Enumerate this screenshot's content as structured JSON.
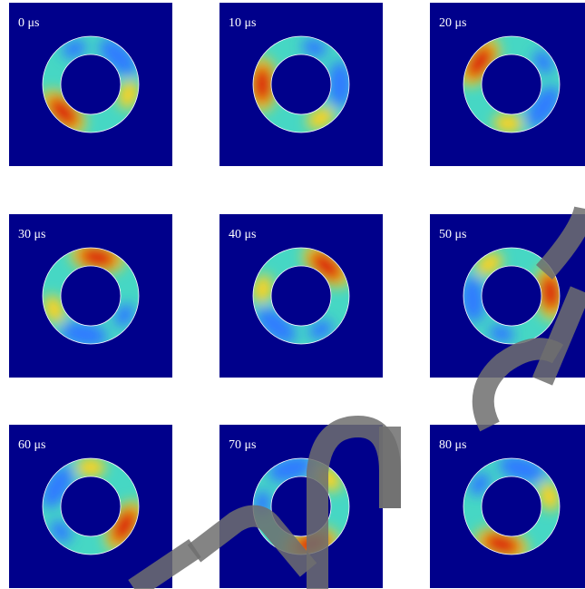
{
  "panels": [
    {
      "label": "0 μs",
      "hot_angle_deg": 135,
      "warm_angle_deg": 15
    },
    {
      "label": "10 μs",
      "hot_angle_deg": 180,
      "warm_angle_deg": 60
    },
    {
      "label": "20 μs",
      "hot_angle_deg": 215,
      "warm_angle_deg": 95
    },
    {
      "label": "30 μs",
      "hot_angle_deg": 280,
      "warm_angle_deg": 160
    },
    {
      "label": "40 μs",
      "hot_angle_deg": 310,
      "warm_angle_deg": 190
    },
    {
      "label": "50 μs",
      "hot_angle_deg": 355,
      "warm_angle_deg": 235
    },
    {
      "label": "60 μs",
      "hot_angle_deg": 30,
      "warm_angle_deg": 270
    },
    {
      "label": "70 μs",
      "hot_angle_deg": 75,
      "warm_angle_deg": 315
    },
    {
      "label": "80 μs",
      "hot_angle_deg": 105,
      "warm_angle_deg": 345
    }
  ],
  "colors": {
    "background": "#00008b",
    "ring_cold": "#2d7bff",
    "ring_mid": "#46d7c4",
    "ring_warm": "#ffd21f",
    "ring_hot": "#d9110b",
    "ring_border": "#ffffff",
    "watermark": "#6e6e6e"
  }
}
